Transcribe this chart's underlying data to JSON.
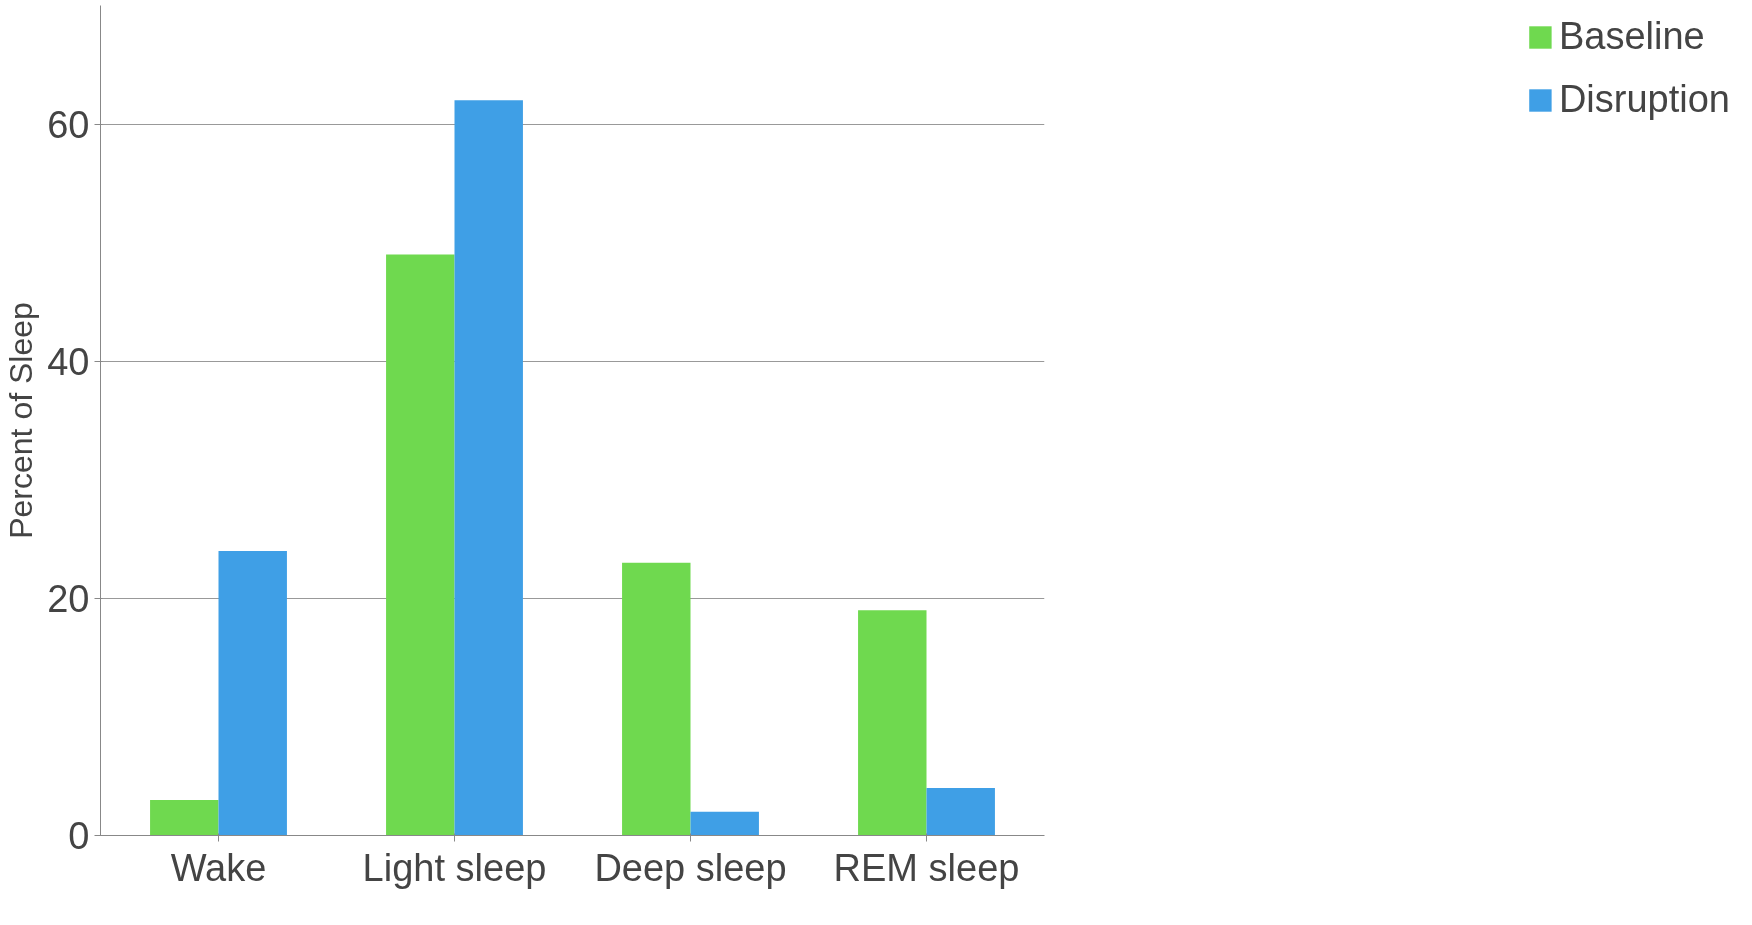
{
  "chart_data": {
    "type": "bar",
    "ylabel": "Percent of Sleep",
    "categories": [
      "Wake",
      "Light sleep",
      "Deep sleep",
      "REM sleep"
    ],
    "series": [
      {
        "name": "Baseline",
        "color": "#6fd94f",
        "values": [
          3,
          49,
          23,
          19
        ]
      },
      {
        "name": "Disruption",
        "color": "#3f9fe6",
        "values": [
          24,
          62,
          2,
          4
        ]
      }
    ],
    "ylim": [
      0,
      70
    ],
    "yticks": [
      0,
      20,
      40,
      60
    ],
    "grid": "y",
    "legend": "right"
  }
}
